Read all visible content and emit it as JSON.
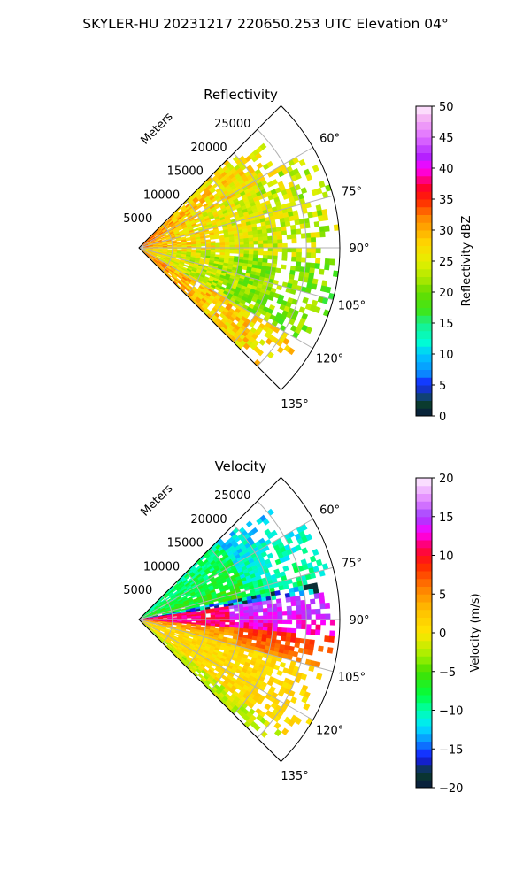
{
  "figure": {
    "title": "SKYLER-HU  20231217  220650.253 UTC Elevation 04°"
  },
  "chart_data": [
    {
      "type": "heatmap",
      "projection": "polar-sector",
      "title": "Reflectivity",
      "radial_label": "Meters",
      "radial_ticks": [
        "5000",
        "10000",
        "15000",
        "20000",
        "25000"
      ],
      "radial_tick_values": [
        5000,
        10000,
        15000,
        20000,
        25000
      ],
      "radial_max": 30000,
      "angle_ticks": [
        "60°",
        "75°",
        "90°",
        "105°",
        "120°",
        "135°"
      ],
      "angle_tick_values": [
        60,
        75,
        90,
        105,
        120,
        135
      ],
      "angle_range": [
        45,
        135
      ],
      "grid": true,
      "colorbar": {
        "label": "Reflectivity dBZ",
        "ticks": [
          "0",
          "5",
          "10",
          "15",
          "20",
          "25",
          "30",
          "35",
          "40",
          "45",
          "50"
        ],
        "range": [
          0,
          50
        ],
        "colormap": [
          [
            0,
            "#08183f"
          ],
          [
            2,
            "#0b3d2e"
          ],
          [
            4,
            "#1346a8"
          ],
          [
            5,
            "#1616ff"
          ],
          [
            7,
            "#0a8cff"
          ],
          [
            10,
            "#00c8ff"
          ],
          [
            12,
            "#00ffd2"
          ],
          [
            15,
            "#18f08a"
          ],
          [
            17,
            "#3ee61a"
          ],
          [
            20,
            "#66dd00"
          ],
          [
            22,
            "#a8e800"
          ],
          [
            25,
            "#e6f000"
          ],
          [
            28,
            "#ffd400"
          ],
          [
            32,
            "#ff8800"
          ],
          [
            35,
            "#ff2200"
          ],
          [
            37,
            "#ff0030"
          ],
          [
            40,
            "#ff00ff"
          ],
          [
            42,
            "#b022ff"
          ],
          [
            45,
            "#e070ff"
          ],
          [
            48,
            "#f4b0f4"
          ],
          [
            50,
            "#fff0ff"
          ]
        ]
      }
    },
    {
      "type": "heatmap",
      "projection": "polar-sector",
      "title": "Velocity",
      "radial_label": "Meters",
      "radial_ticks": [
        "5000",
        "10000",
        "15000",
        "20000",
        "25000"
      ],
      "radial_tick_values": [
        5000,
        10000,
        15000,
        20000,
        25000
      ],
      "radial_max": 30000,
      "angle_ticks": [
        "60°",
        "75°",
        "90°",
        "105°",
        "120°",
        "135°"
      ],
      "angle_tick_values": [
        60,
        75,
        90,
        105,
        120,
        135
      ],
      "angle_range": [
        45,
        135
      ],
      "grid": true,
      "colorbar": {
        "label": "Velocity (m/s)",
        "ticks": [
          "−20",
          "−15",
          "−10",
          "−5",
          "0",
          "5",
          "10",
          "15",
          "20"
        ],
        "range": [
          -20,
          20
        ],
        "colormap": [
          [
            -20,
            "#08183f"
          ],
          [
            -18,
            "#0b3d2e"
          ],
          [
            -16,
            "#1616ff"
          ],
          [
            -14,
            "#0a8cff"
          ],
          [
            -12,
            "#00e5ff"
          ],
          [
            -10,
            "#00ffb0"
          ],
          [
            -8,
            "#00ff40"
          ],
          [
            -5,
            "#44e000"
          ],
          [
            -3,
            "#a0f000"
          ],
          [
            0,
            "#ffe600"
          ],
          [
            3,
            "#ffc000"
          ],
          [
            6,
            "#ff7a00"
          ],
          [
            9,
            "#ff2000"
          ],
          [
            11,
            "#ff0050"
          ],
          [
            13,
            "#ff00ff"
          ],
          [
            15,
            "#a040ff"
          ],
          [
            17,
            "#e080ff"
          ],
          [
            20,
            "#fff0ff"
          ]
        ]
      }
    }
  ]
}
